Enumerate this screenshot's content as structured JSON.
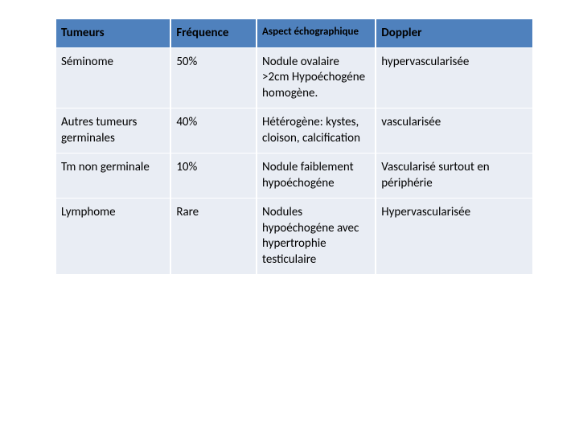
{
  "table": {
    "header_background": "#4f81bd",
    "row_background": "#e9edf4",
    "columns": [
      {
        "label": "Tumeurs"
      },
      {
        "label": "Fréquence"
      },
      {
        "label": "Aspect échographique"
      },
      {
        "label": "Doppler"
      }
    ],
    "rows": [
      {
        "tumeur": "Séminome",
        "frequence": "50%",
        "aspect": "Nodule ovalaire >2cm Hypoéchogéne homogène.",
        "doppler": "hypervascularisée"
      },
      {
        "tumeur": "Autres tumeurs germinales",
        "frequence": "40%",
        "aspect": "Hétérogène: kystes, cloison, calcification",
        "doppler": "vascularisée"
      },
      {
        "tumeur": "Tm non germinale",
        "frequence": "10%",
        "aspect": "Nodule faiblement hypoéchogéne",
        "doppler": "Vascularisé surtout en périphérie"
      },
      {
        "tumeur": "Lymphome",
        "frequence": "Rare",
        "aspect": "Nodules hypoéchogéne avec hypertrophie testiculaire",
        "doppler": "Hypervascularisée"
      }
    ]
  }
}
